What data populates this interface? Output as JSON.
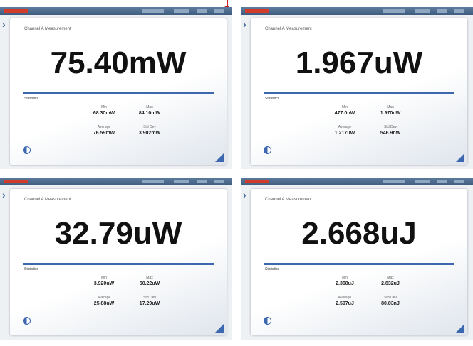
{
  "panels": [
    {
      "title": "Channel A Measurement",
      "reading": "75.40mW",
      "stats_label": "Statistics",
      "min_label": "Min",
      "min": "68.30mW",
      "max_label": "Max",
      "max": "84.10mW",
      "avg_label": "Average",
      "avg": "76.59mW",
      "std_label": "Std Dev",
      "std": "3.902mW"
    },
    {
      "title": "Channel A Measurement",
      "reading": "1.967uW",
      "stats_label": "Statistics",
      "min_label": "Min",
      "min": "477.0nW",
      "max_label": "Max",
      "max": "1.970uW",
      "avg_label": "Average",
      "avg": "1.217uW",
      "std_label": "Std Dev",
      "std": "546.9nW"
    },
    {
      "title": "Channel A Measurement",
      "reading": "32.79uW",
      "stats_label": "Statistics",
      "min_label": "Min",
      "min": "3.920uW",
      "max_label": "Max",
      "max": "50.22uW",
      "avg_label": "Average",
      "avg": "25.88uW",
      "std_label": "Std Dev",
      "std": "17.29uW"
    },
    {
      "title": "Channel A Measurement",
      "reading": "2.668uJ",
      "stats_label": "Statistics",
      "min_label": "Min",
      "min": "2.368uJ",
      "max_label": "Max",
      "max": "2.832uJ",
      "avg_label": "Average",
      "avg": "2.597uJ",
      "std_label": "Std Dev",
      "std": "80.83nJ"
    }
  ]
}
